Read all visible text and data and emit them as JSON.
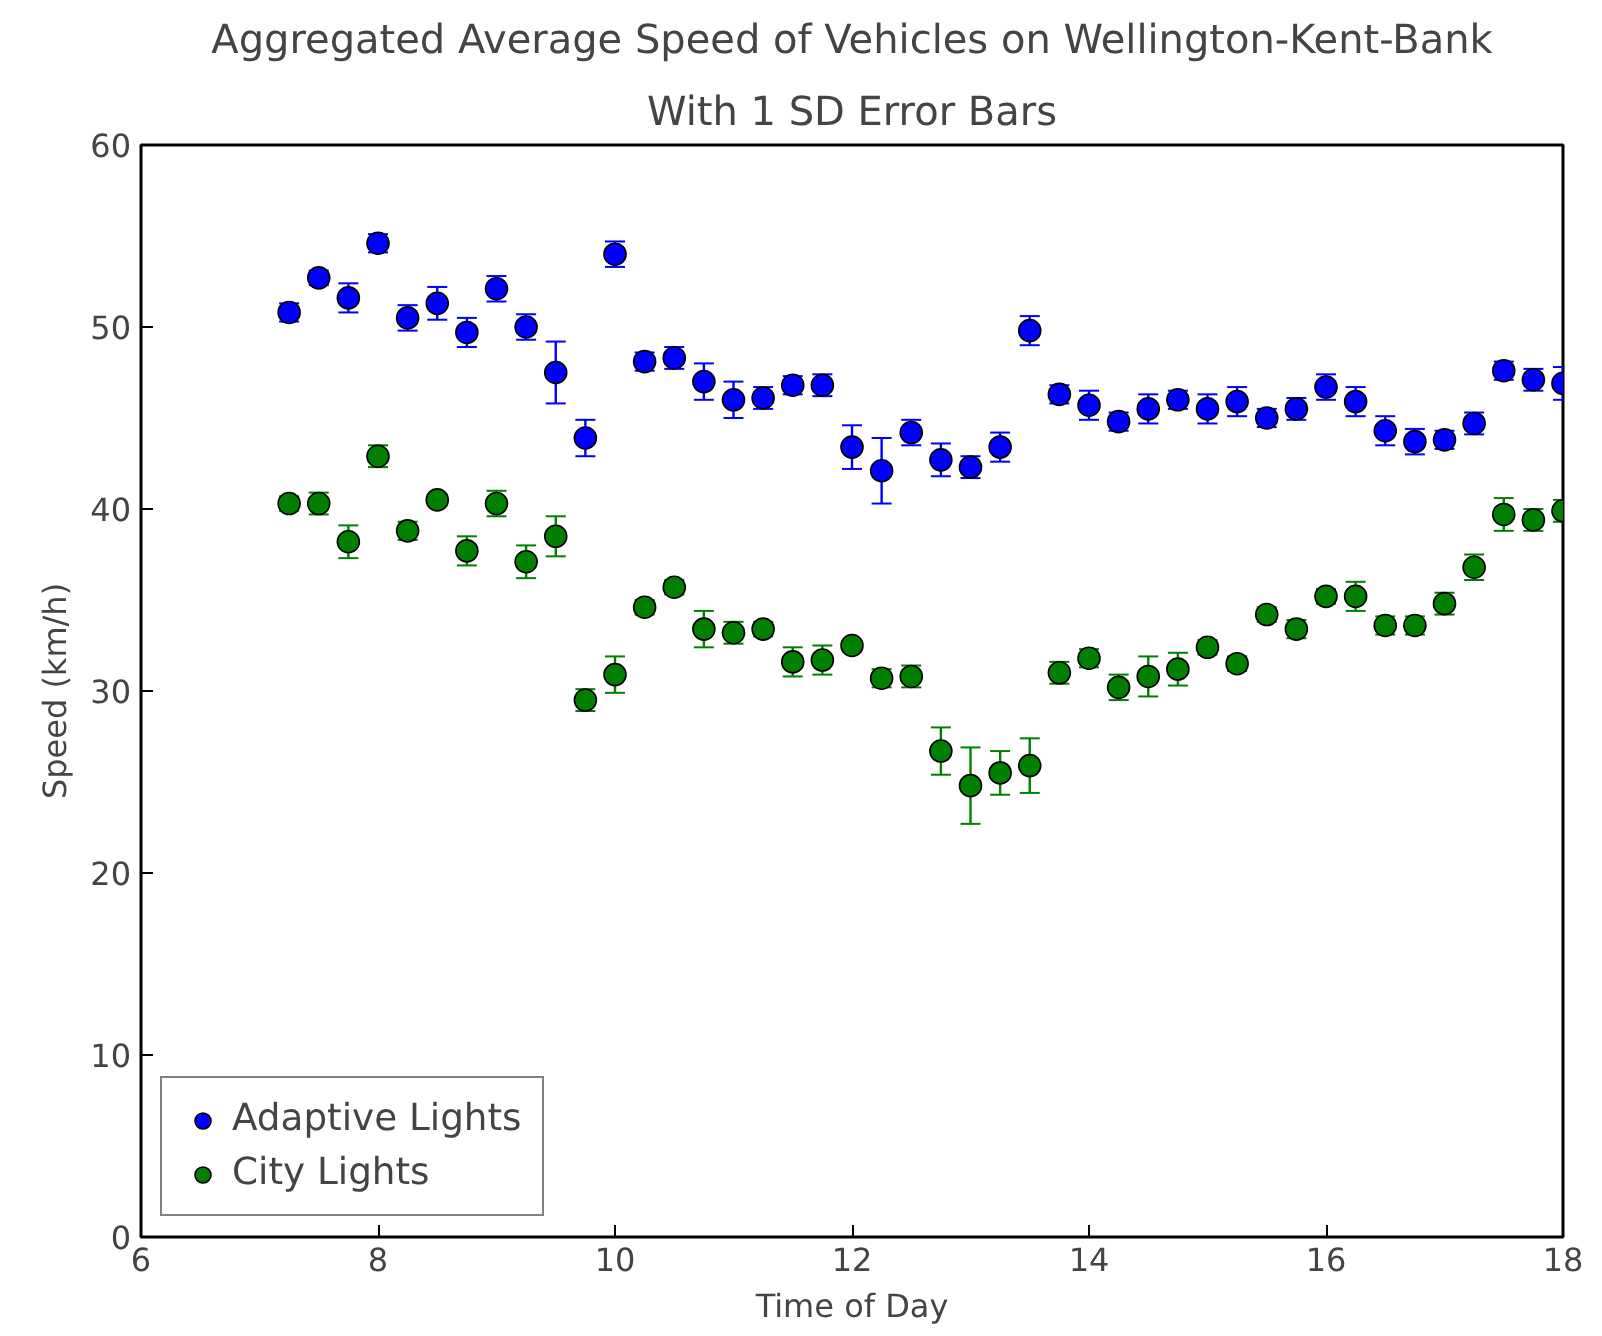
{
  "chart_data": {
    "type": "scatter",
    "title": "Aggregated Average Speed of Vehicles on Wellington-Kent-Bank",
    "subtitle": "With 1 SD Error Bars",
    "xlabel": "Time of Day",
    "ylabel": "Speed (km/h)",
    "x": [
      7.25,
      7.5,
      7.75,
      8,
      8.25,
      8.5,
      8.75,
      9,
      9.25,
      9.5,
      9.75,
      10,
      10.25,
      10.5,
      10.75,
      11,
      11.25,
      11.5,
      11.75,
      12,
      12.25,
      12.5,
      12.75,
      13,
      13.25,
      13.5,
      13.75,
      14,
      14.25,
      14.5,
      14.75,
      15,
      15.25,
      15.5,
      15.75,
      16,
      16.25,
      16.5,
      16.75,
      17,
      17.25,
      17.5,
      17.75,
      18
    ],
    "series": [
      {
        "name": "Adaptive Lights",
        "color": "#0000ff",
        "values": [
          50.8,
          52.7,
          51.6,
          54.6,
          50.5,
          51.3,
          49.7,
          52.1,
          50.0,
          47.5,
          43.9,
          54.0,
          48.1,
          48.3,
          47.0,
          46.0,
          46.1,
          46.8,
          46.8,
          43.4,
          42.1,
          44.2,
          42.7,
          42.3,
          43.4,
          49.8,
          46.3,
          45.7,
          44.8,
          45.5,
          46.0,
          45.5,
          45.9,
          45.0,
          45.5,
          46.7,
          45.9,
          44.3,
          43.7,
          43.8,
          44.7,
          47.6,
          47.1,
          46.9
        ],
        "errors": [
          0.5,
          0.4,
          0.8,
          0.5,
          0.7,
          0.9,
          0.8,
          0.7,
          0.7,
          1.7,
          1.0,
          0.7,
          0.5,
          0.6,
          1.0,
          1.0,
          0.6,
          0.5,
          0.6,
          1.2,
          1.8,
          0.7,
          0.9,
          0.6,
          0.8,
          0.8,
          0.5,
          0.8,
          0.5,
          0.8,
          0.5,
          0.8,
          0.8,
          0.5,
          0.6,
          0.7,
          0.8,
          0.8,
          0.7,
          0.5,
          0.6,
          0.5,
          0.6,
          0.9
        ]
      },
      {
        "name": "City Lights",
        "color": "#007f00",
        "values": [
          40.3,
          40.3,
          38.2,
          42.9,
          38.8,
          40.5,
          37.7,
          40.3,
          37.1,
          38.5,
          29.5,
          30.9,
          34.6,
          35.7,
          33.4,
          33.2,
          33.4,
          31.6,
          31.7,
          32.5,
          30.7,
          30.8,
          26.7,
          24.8,
          25.5,
          25.9,
          31.0,
          31.8,
          30.2,
          30.8,
          31.2,
          32.4,
          31.5,
          34.2,
          33.4,
          35.2,
          35.2,
          33.6,
          33.6,
          34.8,
          36.8,
          39.7,
          39.4,
          39.9
        ],
        "errors": [
          0.4,
          0.6,
          0.9,
          0.6,
          0.5,
          0.3,
          0.8,
          0.7,
          0.9,
          1.1,
          0.6,
          1.0,
          0.4,
          0.4,
          1.0,
          0.6,
          0.4,
          0.8,
          0.8,
          0.3,
          0.5,
          0.6,
          1.3,
          2.1,
          1.2,
          1.5,
          0.6,
          0.5,
          0.7,
          1.1,
          0.9,
          0.4,
          0.4,
          0.4,
          0.5,
          0.4,
          0.8,
          0.5,
          0.5,
          0.6,
          0.7,
          0.9,
          0.6,
          0.6
        ]
      }
    ],
    "xlim": [
      6,
      18
    ],
    "ylim": [
      0,
      60
    ],
    "xticks": [
      6,
      8,
      10,
      12,
      14,
      16,
      18
    ],
    "yticks": [
      0,
      10,
      20,
      30,
      40,
      50,
      60
    ],
    "marker": "circle",
    "legend": "bottom left",
    "grid": false
  }
}
